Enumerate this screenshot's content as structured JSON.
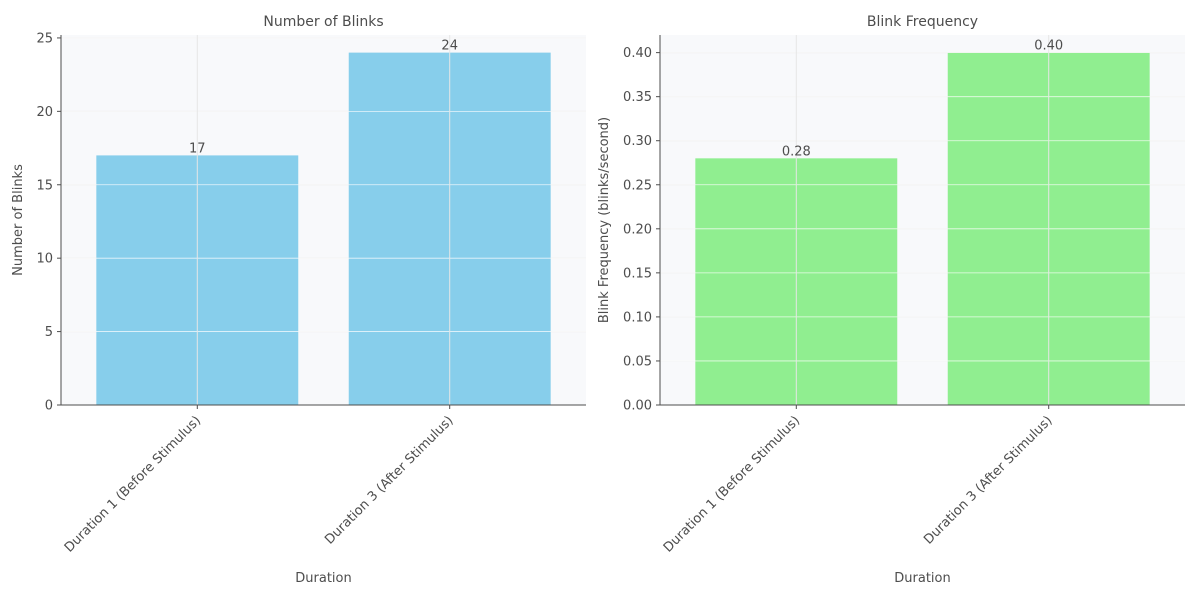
{
  "chart_data": [
    {
      "type": "bar",
      "title": "Number of Blinks",
      "xlabel": "Duration",
      "ylabel": "Number of Blinks",
      "categories": [
        "Duration 1 (Before Stimulus)",
        "Duration 3 (After Stimulus)"
      ],
      "values": [
        17,
        24
      ],
      "value_labels": [
        "17",
        "24"
      ],
      "ylim": [
        0,
        25.2
      ],
      "yticks": [
        0,
        5,
        10,
        15,
        20,
        25
      ],
      "ytick_labels": [
        "0",
        "5",
        "10",
        "15",
        "20",
        "25"
      ],
      "grid": true,
      "color": "#87ceeb"
    },
    {
      "type": "bar",
      "title": "Blink Frequency",
      "xlabel": "Duration",
      "ylabel": "Blink Frequency (blinks/second)",
      "categories": [
        "Duration 1 (Before Stimulus)",
        "Duration 3 (After Stimulus)"
      ],
      "values": [
        0.28,
        0.4
      ],
      "value_labels": [
        "0.28",
        "0.40"
      ],
      "ylim": [
        0,
        0.42
      ],
      "yticks": [
        0,
        0.05,
        0.1,
        0.15,
        0.2,
        0.25,
        0.3,
        0.35,
        0.4
      ],
      "ytick_labels": [
        "0.00",
        "0.05",
        "0.10",
        "0.15",
        "0.20",
        "0.25",
        "0.30",
        "0.35",
        "0.40"
      ],
      "grid": true,
      "color": "#90ee90"
    }
  ]
}
